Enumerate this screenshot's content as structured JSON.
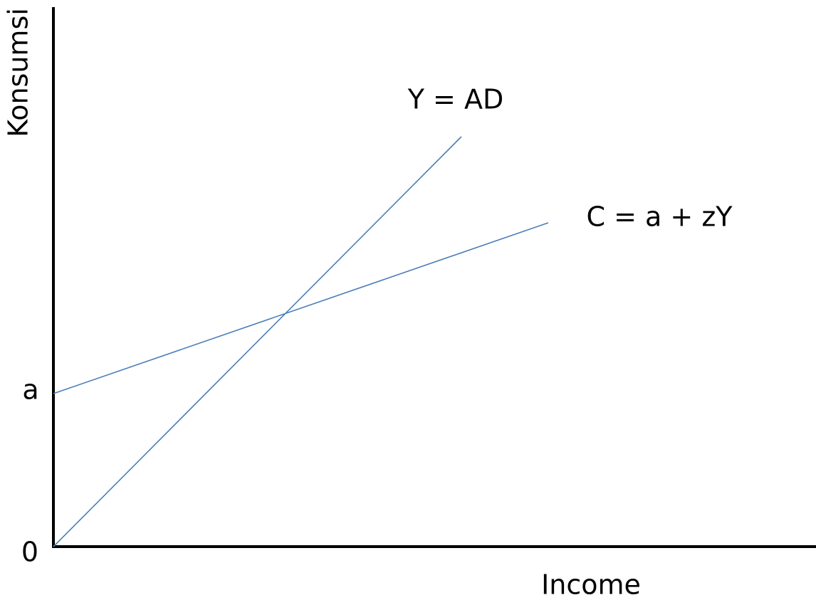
{
  "axes": {
    "y_label": "Konsumsi",
    "x_label": "Income",
    "origin_label": "0",
    "intercept_label": "a"
  },
  "lines": [
    {
      "label": "Y = AD"
    },
    {
      "label": "C = a + zY"
    }
  ]
}
